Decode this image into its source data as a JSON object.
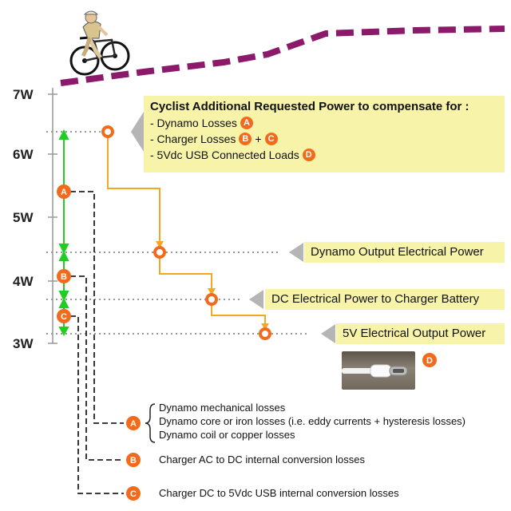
{
  "axis": {
    "ticks": [
      "7W",
      "6W",
      "5W",
      "4W",
      "3W"
    ]
  },
  "main_callout": {
    "title": "Cyclist Additional Requested Power to compensate for :",
    "lines": [
      "- Dynamo Losses",
      "- Charger Losses",
      "- 5Vdc USB Connected Loads"
    ],
    "plus": "+"
  },
  "callouts": {
    "dynamo_output": "Dynamo Output Electrical Power",
    "dc_charger": "DC Electrical Power to Charger Battery",
    "usb_output": "5V Electrical Output Power"
  },
  "badges": {
    "a": "A",
    "b": "B",
    "c": "C",
    "d": "D"
  },
  "legend": {
    "a_lines": [
      "Dynamo mechanical losses",
      "Dynamo core or iron losses (i.e. eddy currents + hysteresis losses)",
      "Dynamo coil or copper losses"
    ],
    "b": "Charger AC to DC internal conversion losses",
    "c": "Charger DC to 5Vdc USB internal conversion losses"
  },
  "colors": {
    "road": "#8b1a6b",
    "orange": "#f5a623",
    "badge": "#f26b1d",
    "green_arrow": "#22cc22",
    "callout_bg": "#f7f3a8",
    "pointer": "#b5b5b5"
  },
  "icons": {
    "cyclist": "cyclist-on-bicycle-icon",
    "usb": "usb-c-cable-photo"
  }
}
